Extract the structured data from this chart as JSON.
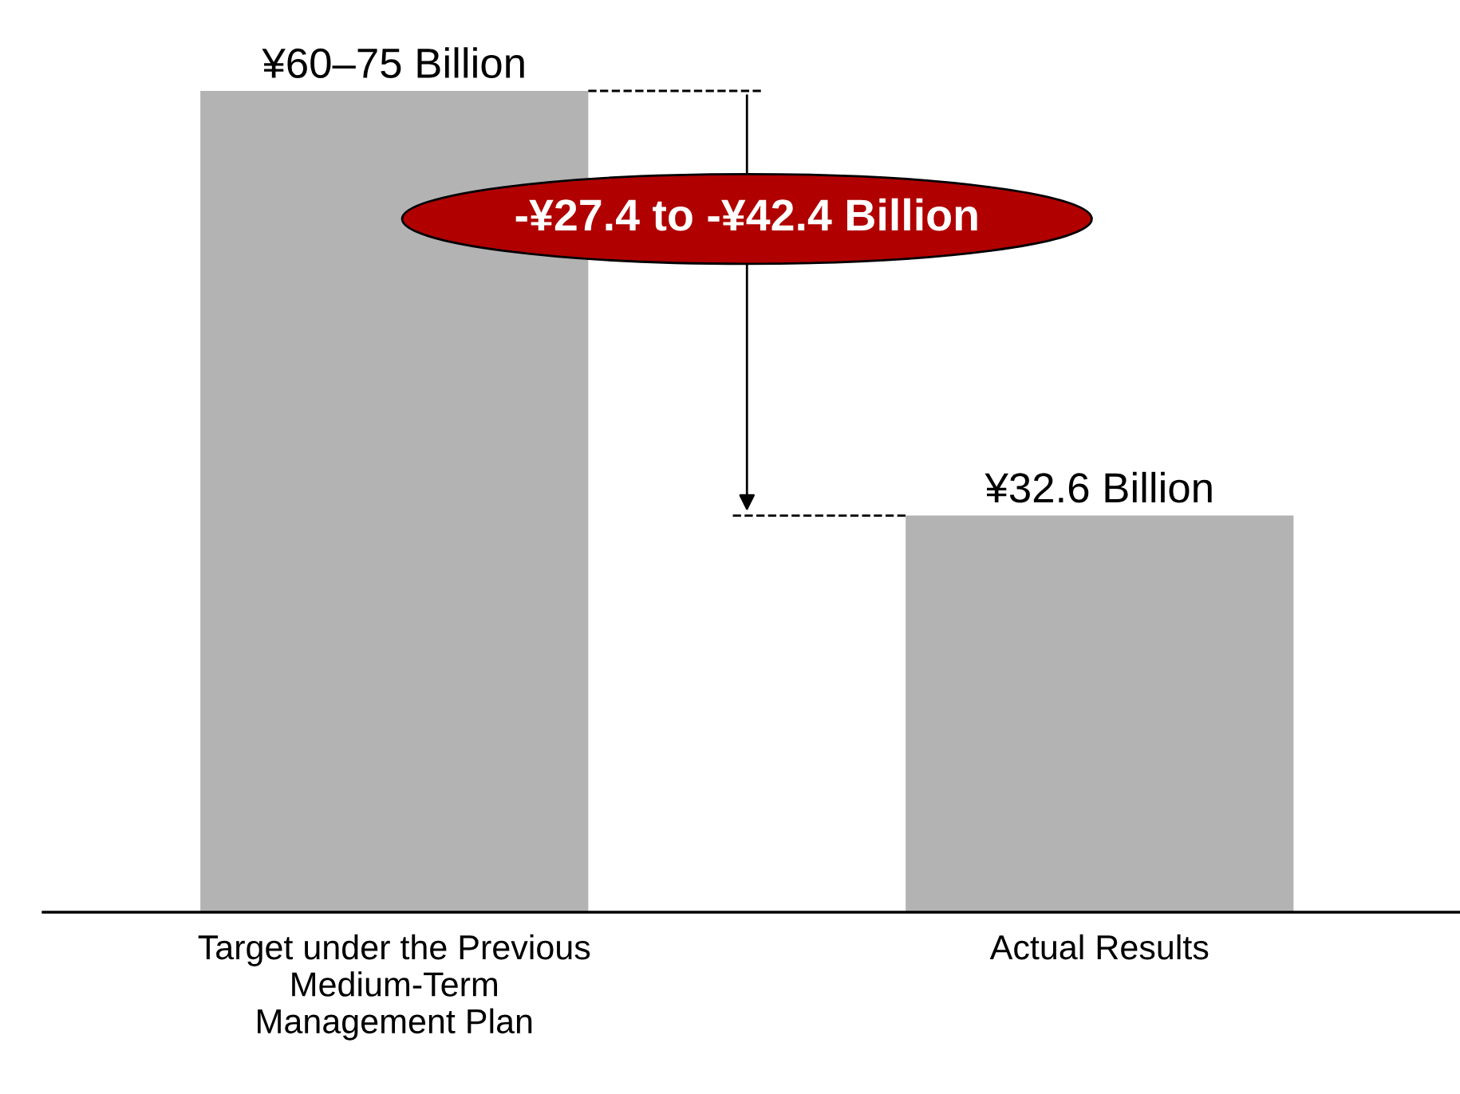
{
  "chart_data": {
    "type": "bar",
    "categories": [
      "Target under the Previous\nMedium-Term\nManagement Plan",
      "Actual Results"
    ],
    "values": [
      67.5,
      32.6
    ],
    "value_labels": [
      "¥60–75 Billion",
      "¥32.6 Billion"
    ],
    "color": "#b3b3b3",
    "annotations": [
      "-¥27.4 to -¥42.4 Billion"
    ],
    "ref_lines": [
      {
        "axis": "y",
        "value": 67.5,
        "color": "#000000",
        "line_style": "dashed"
      },
      {
        "axis": "y",
        "value": 32.6,
        "color": "#000000",
        "line_style": "dashed"
      }
    ],
    "grid": false,
    "legend": false
  }
}
